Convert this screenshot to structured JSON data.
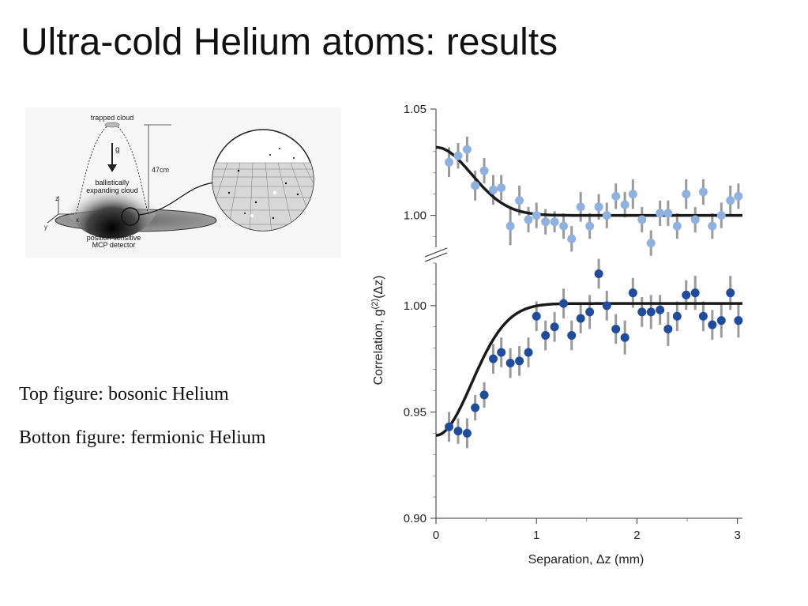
{
  "slide": {
    "title": "Ultra-cold Helium atoms: results",
    "captions": [
      "Top figure: bosonic Helium",
      "Botton figure: fermionic Helium"
    ]
  },
  "diagram": {
    "labels": {
      "trapped_cloud": "trapped cloud",
      "gravity": "g",
      "cloud_line1": "ballistically",
      "cloud_line2": "expanding cloud",
      "height": "47cm",
      "axis_z": "z",
      "axis_x": "x",
      "axis_y": "y",
      "detector_line1": "position sensitive",
      "detector_line2": "MCP detector"
    }
  },
  "chart_data": {
    "type": "scatter",
    "xlabel": "Separation, Δz (mm)",
    "ylabel": "Correlation, g(2)(Δz)",
    "xlim": [
      0,
      3.05
    ],
    "xticks": [
      "0",
      "1",
      "2",
      "3"
    ],
    "top_panel": {
      "ylim": [
        0.985,
        1.05
      ],
      "yticks": [
        "1.05",
        "1.00"
      ],
      "color": "#8fb1df",
      "fit_color": "#1a1a1a",
      "x": [
        0.13,
        0.22,
        0.31,
        0.39,
        0.48,
        0.57,
        0.65,
        0.74,
        0.83,
        0.92,
        1.0,
        1.09,
        1.18,
        1.27,
        1.35,
        1.44,
        1.53,
        1.62,
        1.7,
        1.79,
        1.88,
        1.96,
        2.05,
        2.14,
        2.23,
        2.31,
        2.4,
        2.49,
        2.58,
        2.66,
        2.75,
        2.84,
        2.93,
        3.01
      ],
      "y": [
        1.025,
        1.028,
        1.031,
        1.014,
        1.021,
        1.012,
        1.013,
        0.995,
        1.007,
        0.998,
        1.0,
        0.997,
        0.997,
        0.995,
        0.989,
        1.004,
        0.995,
        1.004,
        1.0,
        1.009,
        1.005,
        1.01,
        0.998,
        0.987,
        1.001,
        1.001,
        0.995,
        1.01,
        0.998,
        1.011,
        0.995,
        1.0,
        1.007,
        1.009
      ],
      "err": [
        0.007,
        0.006,
        0.006,
        0.007,
        0.006,
        0.007,
        0.006,
        0.009,
        0.007,
        0.006,
        0.006,
        0.006,
        0.005,
        0.006,
        0.006,
        0.007,
        0.006,
        0.006,
        0.006,
        0.006,
        0.006,
        0.007,
        0.006,
        0.006,
        0.006,
        0.006,
        0.006,
        0.007,
        0.006,
        0.006,
        0.006,
        0.006,
        0.007,
        0.006
      ],
      "fit_baseline": 1.0,
      "fit_amplitude": 0.032,
      "fit_width": 0.5
    },
    "bottom_panel": {
      "ylim": [
        0.9,
        1.02
      ],
      "yticks": [
        "1.00",
        "0.95",
        "0.90"
      ],
      "color": "#1f4c9c",
      "fit_color": "#1a1a1a",
      "x": [
        0.13,
        0.22,
        0.31,
        0.39,
        0.48,
        0.57,
        0.65,
        0.74,
        0.83,
        0.92,
        1.0,
        1.09,
        1.18,
        1.27,
        1.35,
        1.44,
        1.53,
        1.62,
        1.7,
        1.79,
        1.88,
        1.96,
        2.05,
        2.14,
        2.23,
        2.31,
        2.4,
        2.49,
        2.58,
        2.66,
        2.75,
        2.84,
        2.93,
        3.01
      ],
      "y": [
        0.943,
        0.941,
        0.94,
        0.952,
        0.958,
        0.975,
        0.978,
        0.973,
        0.974,
        0.978,
        0.995,
        0.986,
        0.99,
        1.001,
        0.986,
        0.994,
        0.997,
        1.015,
        1.0,
        0.989,
        0.985,
        1.006,
        0.997,
        0.997,
        0.998,
        0.989,
        0.995,
        1.005,
        1.006,
        0.995,
        0.991,
        0.993,
        1.006,
        0.993
      ],
      "err": [
        0.007,
        0.006,
        0.007,
        0.006,
        0.006,
        0.007,
        0.007,
        0.007,
        0.007,
        0.007,
        0.007,
        0.007,
        0.007,
        0.007,
        0.007,
        0.007,
        0.008,
        0.007,
        0.007,
        0.007,
        0.008,
        0.007,
        0.007,
        0.008,
        0.007,
        0.008,
        0.007,
        0.007,
        0.008,
        0.007,
        0.007,
        0.008,
        0.008,
        0.008
      ],
      "fit_baseline": 1.001,
      "fit_amplitude": 0.062,
      "fit_width": 0.5
    },
    "axis_break": true,
    "grid": false
  }
}
